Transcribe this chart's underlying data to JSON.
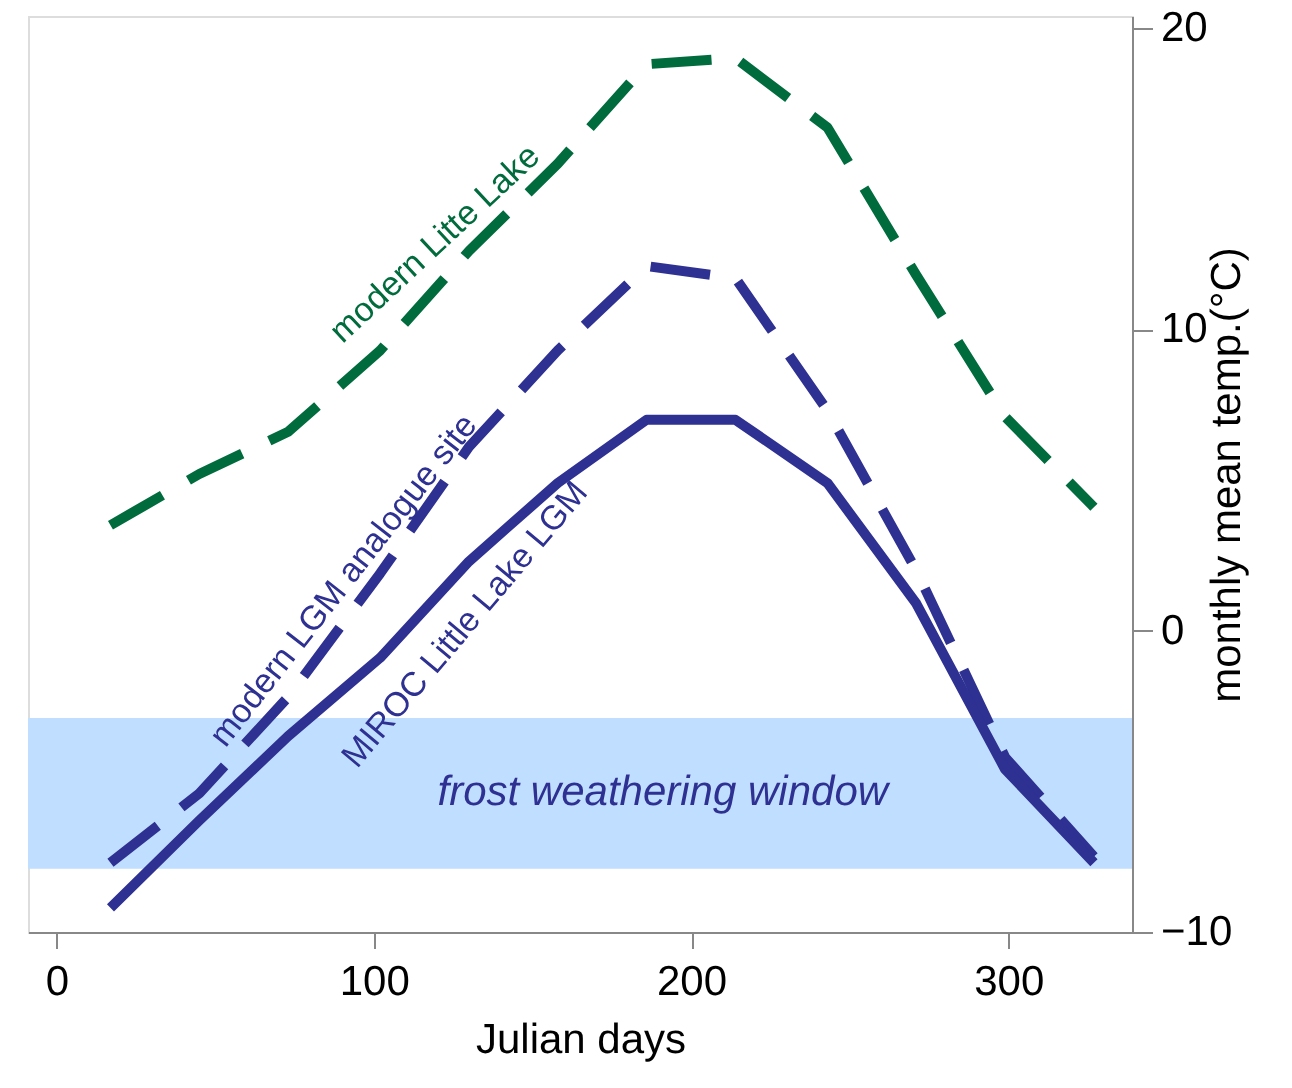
{
  "chart_data": {
    "type": "line",
    "xlabel": "Julian days",
    "y2label": "monthly mean temp.(°C)",
    "xlim": [
      -9,
      339
    ],
    "xticks": [
      0,
      100,
      200,
      300
    ],
    "y2lim": [
      -10,
      20.4
    ],
    "y2ticks": [
      -10,
      0,
      10,
      20
    ],
    "grid": false,
    "legend": false,
    "marker": "none",
    "bands": [
      {
        "axis": "y2",
        "from": -7.9,
        "to": -2.9,
        "label": "frost weathering window",
        "color": "#c0deff"
      }
    ],
    "series": [
      {
        "name": "modern Litte Lake",
        "color": "#006b3c",
        "line_style": "dashed",
        "axis": "y2",
        "x": [
          17,
          45,
          73,
          102,
          130,
          158,
          186,
          214,
          243,
          271,
          299,
          327
        ],
        "values": [
          3.5,
          5.2,
          6.6,
          9.3,
          12.6,
          15.5,
          18.8,
          19.0,
          16.7,
          11.8,
          7.1,
          4.1
        ]
      },
      {
        "name": "modern LGM analogue site",
        "color": "#2e3192",
        "line_style": "dashed",
        "axis": "y2",
        "x": [
          17,
          45,
          73,
          102,
          130,
          158,
          186,
          214,
          243,
          271,
          299,
          327
        ],
        "values": [
          -7.7,
          -5.4,
          -2.2,
          1.9,
          6.1,
          9.3,
          12.1,
          11.7,
          7.3,
          2.0,
          -4.2,
          -7.5
        ]
      },
      {
        "name": "MIROC Little Lake LGM",
        "color": "#2e3192",
        "line_style": "solid",
        "axis": "y2",
        "x": [
          17,
          45,
          73,
          102,
          130,
          158,
          186,
          214,
          243,
          271,
          299,
          327
        ],
        "values": [
          -9.2,
          -6.3,
          -3.5,
          -0.9,
          2.3,
          4.9,
          7.0,
          7.0,
          4.9,
          0.9,
          -4.6,
          -7.7
        ]
      }
    ]
  }
}
